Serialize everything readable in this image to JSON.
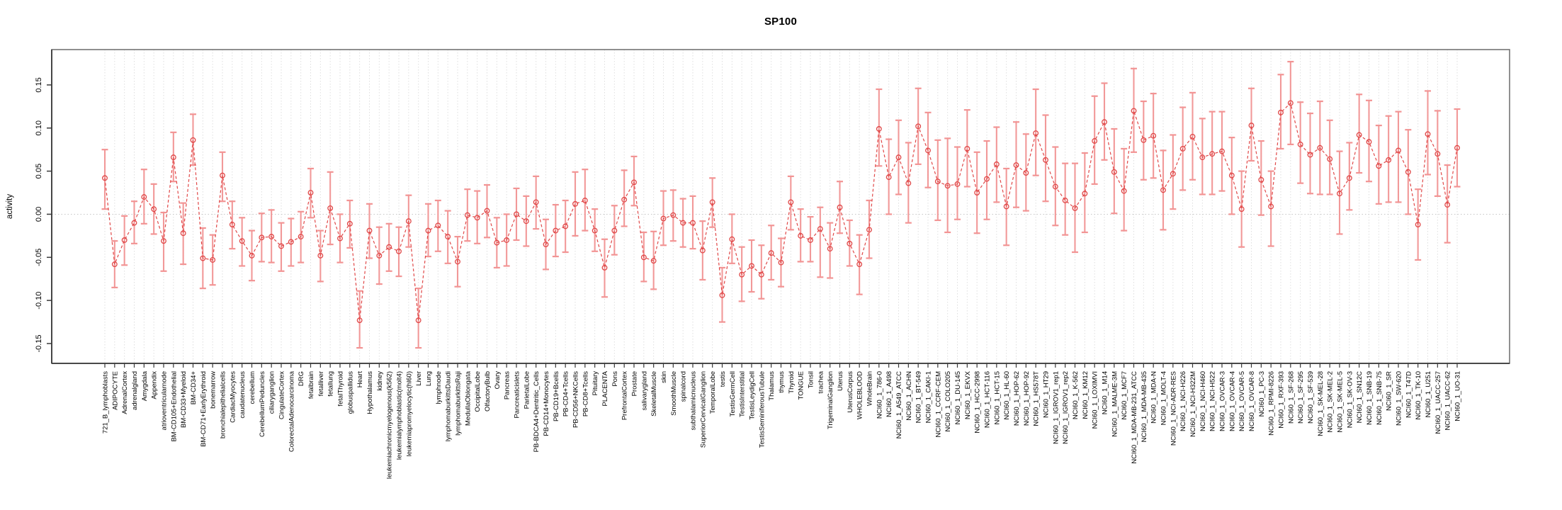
{
  "chart_data": {
    "type": "scatter",
    "title": "SP100",
    "xlabel": "",
    "ylabel": "activity",
    "legend": "none",
    "grid": "light dotted vertical line per category; dotted horizontal line at 0",
    "ylim": [
      -0.173,
      0.191
    ],
    "ytick_labels": [
      "0.15",
      "0.10",
      "0.05",
      "0.00",
      "-0.05",
      "-0.10",
      "-0.15"
    ],
    "ytick_values": [
      0.15,
      0.1,
      0.05,
      0.0,
      -0.05,
      -0.1,
      -0.15
    ],
    "colors": {
      "point_line": "#e04848",
      "error_bar": "#f29494",
      "frame": "#6b6b6b",
      "axis": "#3a3a3a",
      "gridline": "#dedede",
      "zero_line": "#c6c6c6",
      "text": "#000000"
    },
    "categories": [
      "721_B_lymphoblasts",
      "ADIPOCYTE",
      "AdrenalCortex",
      "adrenalgland",
      "Amygdala",
      "Appendix",
      "atrioventricularnode",
      "BM-CD105+Endothelial",
      "BM-CD33+Myeloid",
      "BM-CD34+",
      "BM-CD71+EarlyErythroid",
      "bonemarrow",
      "bronchialepithelialcells",
      "CardiacMyocytes",
      "caudatenucleus",
      "cerebellum",
      "CerebellumPeduncles",
      "ciliaryganglion",
      "CingulateCortex",
      "ColorectalAdenocarcinoma",
      "DRG",
      "fetalbrain",
      "fetalliver",
      "fetallung",
      "fetalThyroid",
      "globuspallidus",
      "Heart",
      "Hypothalamus",
      "kidney",
      "leukemiachronicmyelogenous(k562)",
      "leukemialymphoblastic(molt4)",
      "leukemiapromyelocytic(hl60)",
      "Liver",
      "Lung",
      "lymphnode",
      "lymphomaburkittsDaudi",
      "lymphomaburkittsRaji",
      "MedullaOblongata",
      "OccipitalLobe",
      "OlfactoryBulb",
      "Ovary",
      "Pancreas",
      "Pancreaticislets",
      "ParietalLobe",
      "PB-BDCA4+Dentritic_Cells",
      "PB-CD14+Monocytes",
      "PB-CD19+Bcells",
      "PB-CD4+Tcells",
      "PB-CD56+NKCells",
      "PB-CD8+Tcells",
      "Pituitary",
      "PLACENTA",
      "Pons",
      "PrefrontalCortex",
      "Prostate",
      "salivarygland",
      "SkeletalMuscle",
      "skin",
      "SmoothMuscle",
      "spinalcord",
      "subthalamicnucleus",
      "SuperiorCervicalGanglion",
      "TemporalLobe",
      "testis",
      "TestisGermCell",
      "TestisInterstitial",
      "TestisLeydigCell",
      "TestisSeminiferousTubule",
      "Thalamus",
      "thymus",
      "Thyroid",
      "TONGUE",
      "Tonsil",
      "trachea",
      "TrigeminalGanglion",
      "Uterus",
      "UterusCorpus",
      "WHOLEBLOOD",
      "WholeBrain",
      "NCI60_1_786-0",
      "NCI60_1_A498",
      "NCI60_1_A549_ATCC",
      "NCI60_1_ACHN",
      "NCI60_1_BT-549",
      "NCI60_1_CAKI-1",
      "NCI60_1_CCRF-CEM",
      "NCI60_1_COLO205",
      "NCI60_1_DU-145",
      "NCI60_1_EKVX",
      "NCI60_1_HCC-2998",
      "NCI60_1_HCT-116",
      "NCI60_1_HCT-15",
      "NCI60_1_HL-60",
      "NCI60_1_HOP-62",
      "NCI60_1_HOP-92",
      "NCI60_1_HS578T",
      "NCI60_1_HT29",
      "NCI60_1_IGROV1_rep1",
      "NCI60_1_IGROV1_rep2",
      "NCI60_1_K-562",
      "NCI60_1_KM12",
      "NCI60_1_LOXIMVI",
      "NCI60_1_M14",
      "NCI60_1_MALME-3M",
      "NCI60_1_MCF7",
      "NCI60_1_MDA-MB-231_ATCC",
      "NCI60_1_MDA-MB-435",
      "NCI60_1_MDA-N",
      "NCI60_1_MOLT-4",
      "NCI60_1_NCI-ADR-RES",
      "NCI60_1_NCI-H226",
      "NCI60_1_NCI-H322M",
      "NCI60_1_NCI-H460",
      "NCI60_1_NCI-H522",
      "NCI60_1_OVCAR-3",
      "NCI60_1_OVCAR-4",
      "NCI60_1_OVCAR-5",
      "NCI60_1_OVCAR-8",
      "NCI60_1_PC-3",
      "NCI60_1_RPMI-8226",
      "NCI60_1_RXF-393",
      "NCI60_1_SF-268",
      "NCI60_1_SF-295",
      "NCI60_1_SF-539",
      "NCI60_1_SK-MEL-28",
      "NCI60_1_SK-MEL-2",
      "NCI60_1_SK-MEL-5",
      "NCI60_1_SK-OV-3",
      "NCI60_1_SN12C",
      "NCI60_1_SNB-19",
      "NCI60_1_SNB-75",
      "NCI60_1_SR",
      "NCI60_1_SW-620",
      "NCI60_1_T47D",
      "NCI60_1_TK-10",
      "NCI60_1_U251",
      "NCI60_1_UACC-257",
      "NCI60_1_UACC-62",
      "NCI60_1_UO-31"
    ],
    "values": [
      0.042,
      -0.058,
      -0.03,
      -0.01,
      0.02,
      0.006,
      -0.031,
      0.066,
      -0.022,
      0.086,
      -0.051,
      -0.053,
      0.045,
      -0.012,
      -0.031,
      -0.048,
      -0.027,
      -0.026,
      -0.037,
      -0.032,
      -0.026,
      0.025,
      -0.048,
      0.007,
      -0.028,
      -0.011,
      -0.123,
      -0.019,
      -0.048,
      -0.038,
      -0.043,
      -0.008,
      -0.123,
      -0.019,
      -0.013,
      -0.026,
      -0.055,
      -0.001,
      -0.004,
      0.004,
      -0.033,
      -0.03,
      0.0,
      -0.008,
      0.014,
      -0.035,
      -0.019,
      -0.014,
      0.012,
      0.016,
      -0.019,
      -0.062,
      -0.019,
      0.017,
      0.037,
      -0.05,
      -0.054,
      -0.005,
      -0.001,
      -0.01,
      -0.01,
      -0.042,
      0.014,
      -0.094,
      -0.029,
      -0.07,
      -0.06,
      -0.07,
      -0.045,
      -0.056,
      0.014,
      -0.025,
      -0.03,
      -0.017,
      -0.04,
      0.008,
      -0.034,
      -0.058,
      -0.018,
      0.099,
      0.043,
      0.066,
      0.036,
      0.102,
      0.074,
      0.038,
      0.033,
      0.035,
      0.076,
      0.025,
      0.041,
      0.058,
      0.009,
      0.057,
      0.048,
      0.094,
      0.063,
      0.032,
      0.016,
      0.007,
      0.024,
      0.085,
      0.107,
      0.049,
      0.027,
      0.12,
      0.086,
      0.091,
      0.028,
      0.047,
      0.076,
      0.09,
      0.066,
      0.07,
      0.073,
      0.045,
      0.006,
      0.103,
      0.04,
      0.009,
      0.118,
      0.129,
      0.081,
      0.069,
      0.077,
      0.064,
      0.024,
      0.042,
      0.092,
      0.084,
      0.056,
      0.063,
      0.074,
      0.049,
      -0.012,
      0.093,
      0.07,
      0.011,
      0.077
    ],
    "err_lo": [
      0.006,
      -0.085,
      -0.059,
      -0.034,
      -0.011,
      -0.023,
      -0.066,
      0.038,
      -0.058,
      0.057,
      -0.086,
      -0.082,
      0.015,
      -0.04,
      -0.06,
      -0.077,
      -0.055,
      -0.056,
      -0.066,
      -0.06,
      -0.056,
      -0.004,
      -0.078,
      -0.035,
      -0.056,
      -0.039,
      -0.155,
      -0.051,
      -0.081,
      -0.066,
      -0.072,
      -0.038,
      -0.155,
      -0.049,
      -0.043,
      -0.057,
      -0.084,
      -0.031,
      -0.034,
      -0.027,
      -0.062,
      -0.06,
      -0.03,
      -0.037,
      -0.017,
      -0.064,
      -0.049,
      -0.044,
      -0.025,
      -0.019,
      -0.043,
      -0.096,
      -0.047,
      -0.014,
      0.01,
      -0.078,
      -0.087,
      -0.036,
      -0.031,
      -0.038,
      -0.04,
      -0.076,
      -0.015,
      -0.125,
      -0.057,
      -0.101,
      -0.09,
      -0.098,
      -0.076,
      -0.084,
      -0.018,
      -0.055,
      -0.055,
      -0.073,
      -0.074,
      -0.022,
      -0.06,
      -0.093,
      -0.051,
      0.056,
      0.0,
      0.023,
      -0.01,
      0.058,
      0.031,
      -0.007,
      -0.021,
      -0.006,
      0.032,
      -0.022,
      -0.006,
      0.014,
      -0.036,
      0.008,
      0.004,
      0.045,
      0.015,
      -0.013,
      -0.024,
      -0.044,
      -0.021,
      0.035,
      0.063,
      0.001,
      -0.019,
      0.072,
      0.04,
      0.042,
      -0.018,
      0.006,
      0.028,
      0.04,
      0.023,
      0.023,
      0.027,
      0.0,
      -0.038,
      0.062,
      -0.001,
      -0.037,
      0.076,
      0.081,
      0.036,
      0.024,
      0.023,
      0.023,
      -0.023,
      0.005,
      0.048,
      0.038,
      0.012,
      0.014,
      0.014,
      0.0,
      -0.053,
      0.046,
      0.021,
      -0.033,
      0.032
    ],
    "err_hi": [
      0.075,
      -0.031,
      -0.002,
      0.015,
      0.052,
      0.035,
      0.002,
      0.095,
      0.013,
      0.116,
      -0.016,
      -0.024,
      0.072,
      0.015,
      -0.004,
      -0.019,
      0.001,
      0.005,
      -0.01,
      -0.005,
      0.003,
      0.053,
      -0.019,
      0.049,
      0.0,
      0.016,
      -0.089,
      0.012,
      -0.015,
      -0.011,
      -0.015,
      0.022,
      -0.086,
      0.012,
      0.016,
      0.004,
      -0.026,
      0.029,
      0.027,
      0.034,
      -0.004,
      0.0,
      0.03,
      0.021,
      0.044,
      -0.006,
      0.011,
      0.016,
      0.049,
      0.052,
      0.006,
      -0.029,
      0.01,
      0.051,
      0.067,
      -0.021,
      -0.02,
      0.027,
      0.028,
      0.018,
      0.021,
      -0.008,
      0.042,
      -0.062,
      0.0,
      -0.038,
      -0.03,
      -0.036,
      -0.013,
      -0.028,
      0.044,
      0.006,
      -0.003,
      0.008,
      -0.01,
      0.038,
      -0.007,
      -0.024,
      0.016,
      0.145,
      0.087,
      0.109,
      0.083,
      0.146,
      0.118,
      0.086,
      0.088,
      0.078,
      0.121,
      0.072,
      0.085,
      0.101,
      0.053,
      0.107,
      0.093,
      0.145,
      0.115,
      0.078,
      0.059,
      0.059,
      0.071,
      0.137,
      0.152,
      0.099,
      0.076,
      0.169,
      0.131,
      0.14,
      0.074,
      0.092,
      0.124,
      0.141,
      0.111,
      0.119,
      0.119,
      0.089,
      0.05,
      0.146,
      0.085,
      0.05,
      0.162,
      0.177,
      0.13,
      0.117,
      0.131,
      0.109,
      0.073,
      0.083,
      0.139,
      0.132,
      0.103,
      0.114,
      0.119,
      0.098,
      0.029,
      0.143,
      0.12,
      0.057,
      0.122
    ]
  }
}
